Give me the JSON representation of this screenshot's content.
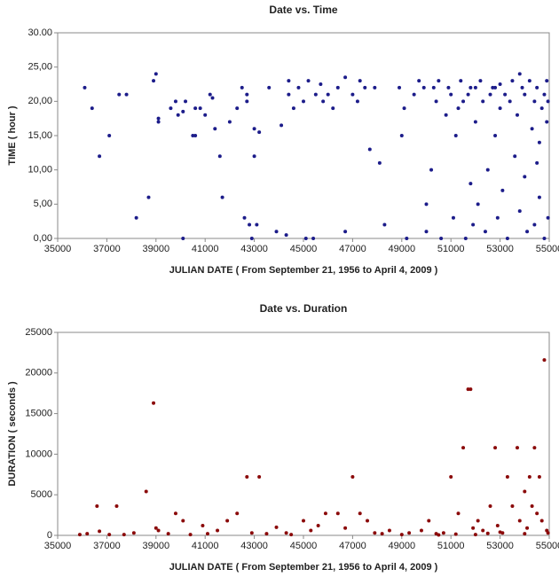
{
  "chart_data": [
    {
      "type": "scatter",
      "title": "Date vs. Time",
      "x_label": "JULIAN DATE ( From September 21, 1956 to April 4, 2009 )",
      "y_label": "TIME ( hour )",
      "color": "#1c1c8a",
      "xlim": [
        35000,
        55000
      ],
      "ylim": [
        0,
        30
      ],
      "xticks": [
        35000,
        37000,
        39000,
        41000,
        43000,
        45000,
        47000,
        49000,
        51000,
        53000,
        55000
      ],
      "yticks": [
        {
          "value": 0,
          "label": "0,00"
        },
        {
          "value": 5,
          "label": "5,00"
        },
        {
          "value": 10,
          "label": "10,00"
        },
        {
          "value": 15,
          "label": "15,00"
        },
        {
          "value": 20,
          "label": "20,00"
        },
        {
          "value": 25,
          "label": "25,00"
        },
        {
          "value": 30,
          "label": "30.00"
        }
      ],
      "x": [
        36100,
        36400,
        36700,
        37100,
        37500,
        37800,
        38200,
        38700,
        38900,
        39000,
        39100,
        39100,
        39600,
        39800,
        39900,
        40100,
        40100,
        40200,
        40500,
        40600,
        40600,
        40800,
        41000,
        41200,
        41300,
        41400,
        41600,
        41700,
        42000,
        42300,
        42500,
        42600,
        42700,
        42700,
        42800,
        42900,
        43000,
        43000,
        43100,
        43200,
        43600,
        43900,
        44100,
        44300,
        44400,
        44400,
        44600,
        44800,
        45000,
        45100,
        45200,
        45400,
        45500,
        45700,
        45800,
        46000,
        46200,
        46400,
        46700,
        46700,
        47000,
        47200,
        47300,
        47500,
        47700,
        47900,
        48100,
        48300,
        48900,
        49000,
        49100,
        49200,
        49500,
        49700,
        49900,
        50000,
        50000,
        50200,
        50300,
        50400,
        50500,
        50600,
        50800,
        50900,
        51000,
        51100,
        51200,
        51300,
        51400,
        51500,
        51600,
        51700,
        51800,
        51800,
        51900,
        52000,
        52000,
        52100,
        52200,
        52300,
        52400,
        52500,
        52600,
        52700,
        52800,
        52900,
        53000,
        53000,
        53100,
        53200,
        53300,
        53400,
        53500,
        53600,
        53700,
        53800,
        53900,
        54000,
        54000,
        54100,
        54200,
        54300,
        54400,
        54400,
        54500,
        54600,
        54600,
        54700,
        54800,
        54800,
        54900,
        54900,
        54950,
        54950,
        54500,
        53800,
        52800
      ],
      "y": [
        22,
        19,
        12,
        15,
        21,
        21,
        3,
        6,
        23,
        24,
        17.5,
        17,
        19,
        20,
        18,
        0,
        18.5,
        20,
        15,
        15,
        19,
        19,
        18,
        21,
        20.5,
        16,
        12,
        6,
        17,
        19,
        22,
        3,
        20,
        21,
        2,
        0,
        12,
        16,
        2,
        15.5,
        22,
        1,
        16.5,
        0.5,
        21,
        23,
        19,
        22,
        20,
        0,
        23,
        0,
        21,
        22.5,
        20,
        21,
        19,
        22,
        23.5,
        1,
        21,
        20,
        23,
        22,
        13,
        22,
        11,
        2,
        22,
        15,
        19,
        0,
        21,
        23,
        22,
        1,
        5,
        10,
        22,
        20,
        23,
        0,
        18,
        22,
        21,
        3,
        15,
        19,
        23,
        20,
        0,
        21,
        22,
        8,
        2,
        17,
        22,
        5,
        23,
        20,
        1,
        10,
        21,
        22,
        15,
        3,
        19,
        22.5,
        7,
        21,
        0,
        20,
        23,
        12,
        18,
        4,
        22,
        21,
        9,
        1,
        23,
        16,
        20,
        2,
        22,
        14,
        6,
        19,
        21,
        0,
        17,
        23,
        3,
        20,
        11,
        24,
        22
      ]
    },
    {
      "type": "scatter",
      "title": "Date vs. Duration",
      "x_label": "JULIAN DATE ( From September 21, 1956 to April 4, 2009 )",
      "y_label": "DURATION ( seconds )",
      "color": "#8b0a0a",
      "xlim": [
        35000,
        55000
      ],
      "ylim": [
        0,
        25000
      ],
      "xticks": [
        35000,
        37000,
        39000,
        41000,
        43000,
        45000,
        47000,
        49000,
        51000,
        53000,
        55000
      ],
      "yticks": [
        0,
        5000,
        10000,
        15000,
        20000,
        25000
      ],
      "x": [
        35900,
        36200,
        36600,
        36700,
        37100,
        37400,
        37700,
        38100,
        38600,
        38900,
        39000,
        39100,
        39500,
        39800,
        40100,
        40400,
        40900,
        41100,
        41500,
        41900,
        42300,
        42700,
        42900,
        43200,
        43500,
        43900,
        44300,
        44500,
        45000,
        45300,
        45600,
        45900,
        46400,
        46700,
        47000,
        47300,
        47600,
        47900,
        48200,
        48500,
        49000,
        49300,
        49800,
        50100,
        50400,
        50700,
        51000,
        51300,
        51500,
        51700,
        51800,
        51900,
        52100,
        52300,
        52600,
        52800,
        52900,
        53100,
        53300,
        53500,
        53700,
        53800,
        54000,
        54100,
        54200,
        54300,
        54400,
        54500,
        54600,
        54700,
        54800,
        54900,
        54950,
        52000,
        53000,
        54000,
        50500,
        51200,
        52500
      ],
      "y": [
        100,
        200,
        3600,
        500,
        100,
        3600,
        100,
        300,
        5400,
        16300,
        900,
        600,
        200,
        2700,
        1800,
        100,
        1200,
        200,
        600,
        1800,
        2700,
        7200,
        300,
        7200,
        200,
        1000,
        300,
        100,
        1800,
        600,
        1200,
        2700,
        2700,
        900,
        7200,
        2700,
        1800,
        300,
        200,
        600,
        100,
        300,
        600,
        1800,
        200,
        300,
        7200,
        2700,
        10800,
        18000,
        18000,
        900,
        1800,
        600,
        3600,
        10800,
        1200,
        300,
        7200,
        3600,
        10800,
        1800,
        5400,
        900,
        7200,
        3600,
        10800,
        2700,
        7200,
        1800,
        21600,
        600,
        300,
        100,
        400,
        200,
        50,
        150,
        250
      ]
    }
  ]
}
